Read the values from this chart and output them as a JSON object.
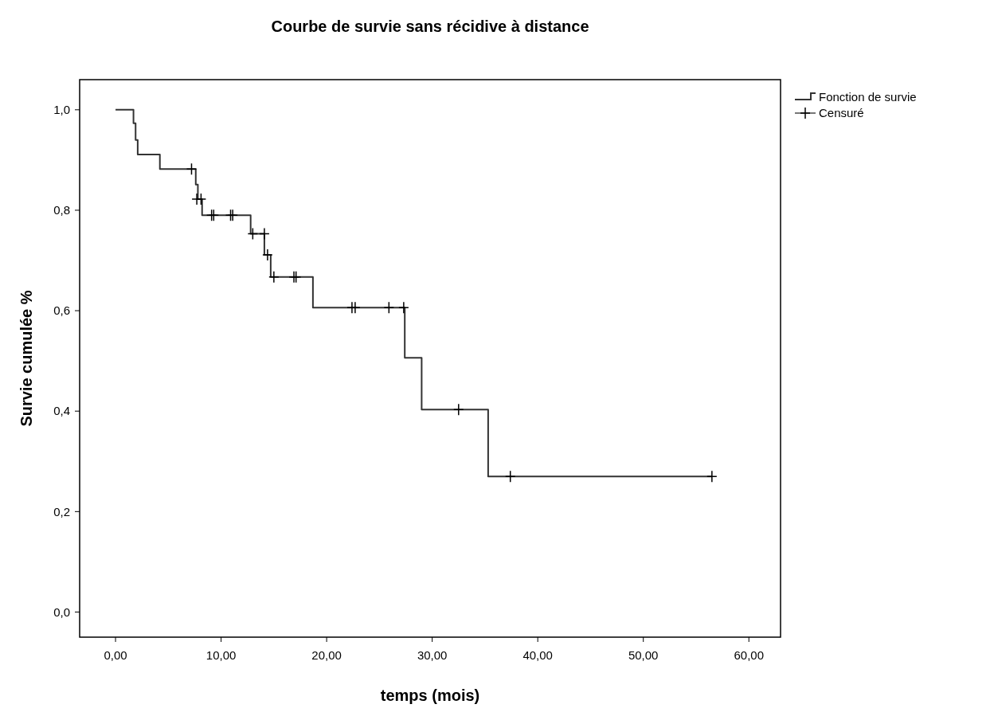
{
  "chart_data": {
    "type": "step",
    "title": "Courbe de survie sans récidive à distance",
    "xlabel": "temps (mois)",
    "ylabel": "Survie cumulée %",
    "xlim": [
      -3.4,
      63
    ],
    "ylim": [
      -0.05,
      1.06
    ],
    "xticks": [
      {
        "value": 0,
        "label": "0,00"
      },
      {
        "value": 10,
        "label": "10,00"
      },
      {
        "value": 20,
        "label": "20,00"
      },
      {
        "value": 30,
        "label": "30,00"
      },
      {
        "value": 40,
        "label": "40,00"
      },
      {
        "value": 50,
        "label": "50,00"
      },
      {
        "value": 60,
        "label": "60,00"
      }
    ],
    "yticks": [
      {
        "value": 0,
        "label": "0,0"
      },
      {
        "value": 0.2,
        "label": "0,2"
      },
      {
        "value": 0.4,
        "label": "0,4"
      },
      {
        "value": 0.6,
        "label": "0,6"
      },
      {
        "value": 0.8,
        "label": "0,8"
      },
      {
        "value": 1,
        "label": "1,0"
      }
    ],
    "legend": "top right",
    "series": [
      {
        "name": "Fonction de survie",
        "color": "#333333",
        "x": [
          0,
          1.7,
          1.9,
          2.1,
          4.2,
          7.6,
          7.8,
          8.2,
          12.8,
          14.1,
          14.7,
          18.7,
          27.4,
          29.0,
          35.3,
          56.5
        ],
        "values": [
          1.0,
          0.973,
          0.94,
          0.911,
          0.882,
          0.851,
          0.822,
          0.79,
          0.753,
          0.711,
          0.667,
          0.606,
          0.506,
          0.403,
          0.27,
          0.27
        ]
      },
      {
        "name": "Censuré",
        "type": "scatter",
        "color": "#000000",
        "marker": "cross",
        "x": [
          7.2,
          7.7,
          8.1,
          9.1,
          9.3,
          10.9,
          11.1,
          13.0,
          14.1,
          14.4,
          15.0,
          16.9,
          17.1,
          22.4,
          22.7,
          25.9,
          27.3,
          32.5,
          37.4,
          56.5
        ],
        "values": [
          0.882,
          0.822,
          0.822,
          0.79,
          0.79,
          0.79,
          0.79,
          0.753,
          0.753,
          0.711,
          0.667,
          0.667,
          0.667,
          0.606,
          0.606,
          0.606,
          0.606,
          0.403,
          0.27,
          0.27
        ]
      }
    ]
  }
}
